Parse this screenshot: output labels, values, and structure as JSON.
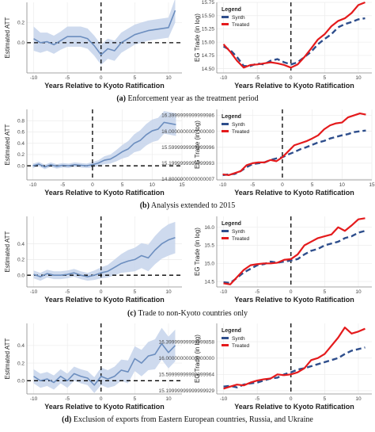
{
  "panels": [
    {
      "caption_tag": "(a)",
      "caption_text": " Enforcement year as the treatment period"
    },
    {
      "caption_tag": "(b)",
      "caption_text": " Analysis extended to 2015"
    },
    {
      "caption_tag": "(c)",
      "caption_text": " Trade to non-Kyoto countries only"
    },
    {
      "caption_tag": "(d)",
      "caption_text": " Exclusion of exports from Eastern European countries, Russia, and Ukraine"
    }
  ],
  "colors": {
    "band": "#c9d6ec",
    "att_line": "#6c8ebf",
    "synth": "#2e4e8c",
    "treated": "#e41a1c"
  },
  "chart_data": [
    {
      "type": "line",
      "panel": "a-left",
      "xlabel": "Years Relative to Kyoto Ratification",
      "ylabel": "Estimated ATT",
      "xlim": [
        -11,
        12
      ],
      "ylim": [
        -0.3,
        0.4
      ],
      "xticks": [
        -10,
        -5,
        0,
        5,
        10
      ],
      "yticks": [
        0.0,
        0.2
      ],
      "x": [
        -10,
        -9,
        -8,
        -7,
        -6,
        -5,
        -4,
        -3,
        -2,
        -1,
        0,
        1,
        2,
        3,
        4,
        5,
        6,
        7,
        8,
        9,
        10,
        11
      ],
      "series": [
        {
          "values": [
            0.04,
            0.0,
            0.01,
            -0.02,
            0.02,
            0.06,
            0.06,
            0.06,
            0.04,
            -0.03,
            -0.12,
            -0.06,
            -0.08,
            0.0,
            0.04,
            0.08,
            0.1,
            0.12,
            0.13,
            0.14,
            0.15,
            0.32
          ]
        }
      ],
      "band_width": [
        0.12,
        0.1,
        0.09,
        0.09,
        0.09,
        0.1,
        0.1,
        0.1,
        0.1,
        0.1,
        0.1,
        0.1,
        0.1,
        0.1,
        0.1,
        0.1,
        0.1,
        0.1,
        0.1,
        0.1,
        0.1,
        0.12
      ],
      "ref_lines": {
        "x": 0,
        "y": 0
      }
    },
    {
      "type": "line",
      "panel": "a-right",
      "xlabel": "Years Relative to Kyoto Ratification",
      "ylabel": "EG Trade (in log)",
      "xlim": [
        -11,
        12
      ],
      "ylim": [
        14.42,
        15.75
      ],
      "xticks": [
        -10,
        -5,
        0,
        5,
        10
      ],
      "yticks": [
        14.5,
        14.75,
        15.0,
        15.25,
        15.5,
        15.75
      ],
      "legend_title": "Legend",
      "legend_position": "top-left",
      "x": [
        -10,
        -9,
        -8,
        -7,
        -6,
        -5,
        -4,
        -3,
        -2,
        -1,
        0,
        1,
        2,
        3,
        4,
        5,
        6,
        7,
        8,
        9,
        10,
        11
      ],
      "series": [
        {
          "name": "Synth",
          "values": [
            14.92,
            14.85,
            14.72,
            14.55,
            14.55,
            14.6,
            14.58,
            14.65,
            14.68,
            14.62,
            14.58,
            14.62,
            14.72,
            14.82,
            14.96,
            15.06,
            15.15,
            15.28,
            15.34,
            15.38,
            15.43,
            15.45
          ]
        },
        {
          "name": "Treated",
          "values": [
            14.96,
            14.82,
            14.65,
            14.52,
            14.57,
            14.58,
            14.6,
            14.62,
            14.6,
            14.57,
            14.52,
            14.58,
            14.72,
            14.88,
            15.05,
            15.15,
            15.3,
            15.4,
            15.45,
            15.55,
            15.7,
            15.75
          ]
        }
      ],
      "ref_lines": {
        "x": 0
      }
    },
    {
      "type": "line",
      "panel": "b-left",
      "xlabel": "Years Relative to Kyoto Ratification",
      "ylabel": "Estimated ATT",
      "xlim": [
        -11,
        15
      ],
      "ylim": [
        -0.25,
        1.0
      ],
      "xticks": [
        -10,
        -5,
        0,
        5,
        10,
        15
      ],
      "yticks": [
        0.0,
        0.2,
        0.4,
        0.6,
        0.8
      ],
      "x": [
        -10,
        -9,
        -8,
        -7,
        -6,
        -5,
        -4,
        -3,
        -2,
        -1,
        0,
        1,
        2,
        3,
        4,
        5,
        6,
        7,
        8,
        9,
        10,
        11,
        12,
        13,
        14
      ],
      "series": [
        {
          "values": [
            0.0,
            0.03,
            -0.02,
            0.02,
            -0.01,
            0.01,
            0.0,
            0.02,
            0.01,
            0.0,
            0.02,
            0.05,
            0.1,
            0.12,
            0.18,
            0.25,
            0.3,
            0.4,
            0.45,
            0.55,
            0.62,
            0.65,
            0.77,
            0.75,
            0.73
          ]
        }
      ],
      "band_width": [
        0.04,
        0.04,
        0.04,
        0.04,
        0.04,
        0.04,
        0.04,
        0.04,
        0.04,
        0.04,
        0.05,
        0.05,
        0.07,
        0.08,
        0.1,
        0.12,
        0.14,
        0.16,
        0.18,
        0.19,
        0.2,
        0.2,
        0.2,
        0.2,
        0.2
      ],
      "ref_lines": {
        "x": 0,
        "y": 0
      }
    },
    {
      "type": "line",
      "panel": "b-right",
      "xlabel": "Years Relative to Kyoto Ratification",
      "ylabel": "EG Trade (in log)",
      "xlim": [
        -11,
        15
      ],
      "ylim": [
        14.78,
        16.55
      ],
      "xticks": [
        -10,
        -5,
        0,
        5,
        10,
        15
      ],
      "yticks": [
        14.8,
        15.2,
        15.6,
        16.0,
        16.4
      ],
      "legend_title": "Legend",
      "legend_position": "top-left",
      "x": [
        -10,
        -9,
        -8,
        -7,
        -6,
        -5,
        -4,
        -3,
        -2,
        -1,
        0,
        1,
        2,
        3,
        4,
        5,
        6,
        7,
        8,
        9,
        10,
        11,
        12,
        13,
        14
      ],
      "series": [
        {
          "name": "Synth",
          "values": [
            14.9,
            14.92,
            14.93,
            15.0,
            15.1,
            15.18,
            15.2,
            15.22,
            15.28,
            15.32,
            15.35,
            15.42,
            15.48,
            15.55,
            15.6,
            15.66,
            15.72,
            15.76,
            15.82,
            15.86,
            15.9,
            15.93,
            15.98,
            16.0,
            16.02
          ]
        },
        {
          "name": "Treated",
          "values": [
            14.92,
            14.9,
            14.95,
            15.0,
            15.15,
            15.2,
            15.22,
            15.22,
            15.28,
            15.25,
            15.35,
            15.5,
            15.65,
            15.7,
            15.75,
            15.82,
            15.9,
            16.05,
            16.15,
            16.2,
            16.22,
            16.35,
            16.4,
            16.45,
            16.42
          ]
        }
      ],
      "ref_lines": {
        "x": 0
      }
    },
    {
      "type": "line",
      "panel": "c-left",
      "xlabel": "Years Relative to Kyoto Ratification",
      "ylabel": "Estimated ATT",
      "xlim": [
        -11,
        12
      ],
      "ylim": [
        -0.15,
        0.75
      ],
      "xticks": [
        -10,
        -5,
        0,
        5,
        10
      ],
      "yticks": [
        0.0,
        0.2,
        0.4
      ],
      "x": [
        -10,
        -9,
        -8,
        -7,
        -6,
        -5,
        -4,
        -3,
        -2,
        -1,
        0,
        1,
        2,
        3,
        4,
        5,
        6,
        7,
        8,
        9,
        10,
        11
      ],
      "series": [
        {
          "values": [
            0.01,
            -0.02,
            0.02,
            0.0,
            0.0,
            0.01,
            0.03,
            0.0,
            -0.02,
            0.0,
            0.03,
            0.05,
            0.1,
            0.15,
            0.18,
            0.2,
            0.25,
            0.22,
            0.32,
            0.4,
            0.45,
            0.48
          ]
        }
      ],
      "band_width": [
        0.05,
        0.05,
        0.05,
        0.05,
        0.05,
        0.05,
        0.05,
        0.05,
        0.05,
        0.06,
        0.07,
        0.08,
        0.1,
        0.12,
        0.14,
        0.15,
        0.16,
        0.17,
        0.18,
        0.19,
        0.2,
        0.2
      ],
      "ref_lines": {
        "x": 0,
        "y": 0
      }
    },
    {
      "type": "line",
      "panel": "c-right",
      "xlabel": "Years Relative to Kyoto Ratification",
      "ylabel": "EG Trade (in log)",
      "xlim": [
        -11,
        12
      ],
      "ylim": [
        14.35,
        16.3
      ],
      "xticks": [
        -10,
        -5,
        0,
        5,
        10
      ],
      "yticks": [
        14.5,
        15.0,
        15.5,
        16.0
      ],
      "legend_title": "Legend",
      "legend_position": "top-left",
      "x": [
        -10,
        -9,
        -8,
        -7,
        -6,
        -5,
        -4,
        -3,
        -2,
        -1,
        0,
        1,
        2,
        3,
        4,
        5,
        6,
        7,
        8,
        9,
        10,
        11
      ],
      "series": [
        {
          "name": "Synth",
          "values": [
            14.48,
            14.46,
            14.6,
            14.75,
            14.85,
            14.95,
            14.98,
            15.05,
            15.02,
            15.05,
            15.08,
            15.12,
            15.25,
            15.35,
            15.4,
            15.5,
            15.55,
            15.6,
            15.7,
            15.75,
            15.85,
            15.9
          ]
        },
        {
          "name": "Treated",
          "values": [
            14.45,
            14.42,
            14.62,
            14.82,
            14.95,
            14.98,
            15.0,
            15.0,
            15.02,
            15.1,
            15.12,
            15.25,
            15.5,
            15.6,
            15.7,
            15.75,
            15.8,
            16.0,
            15.9,
            16.05,
            16.22,
            16.25
          ]
        }
      ],
      "ref_lines": {
        "x": 0
      }
    },
    {
      "type": "line",
      "panel": "d-left",
      "xlabel": "Years Relative to Kyoto Ratification",
      "ylabel": "Estimated ATT",
      "xlim": [
        -11,
        12
      ],
      "ylim": [
        -0.15,
        0.65
      ],
      "xticks": [
        -10,
        -5,
        0,
        5,
        10
      ],
      "yticks": [
        0.0,
        0.2,
        0.4
      ],
      "x": [
        -10,
        -9,
        -8,
        -7,
        -6,
        -5,
        -4,
        -3,
        -2,
        -1,
        0,
        1,
        2,
        3,
        4,
        5,
        6,
        7,
        8,
        9,
        10,
        11
      ],
      "series": [
        {
          "values": [
            0.05,
            0.0,
            0.02,
            -0.02,
            0.05,
            0.0,
            0.08,
            0.05,
            0.03,
            -0.05,
            0.05,
            0.02,
            0.05,
            0.12,
            0.1,
            0.25,
            0.2,
            0.28,
            0.3,
            0.42,
            0.32,
            0.4
          ]
        }
      ],
      "band_width": [
        0.08,
        0.08,
        0.08,
        0.08,
        0.08,
        0.08,
        0.08,
        0.08,
        0.08,
        0.09,
        0.1,
        0.1,
        0.11,
        0.12,
        0.13,
        0.14,
        0.15,
        0.16,
        0.17,
        0.18,
        0.18,
        0.18
      ],
      "ref_lines": {
        "x": 0,
        "y": 0
      }
    },
    {
      "type": "line",
      "panel": "d-right",
      "xlabel": "Years Relative to Kyoto Ratification",
      "ylabel": "EG Trade (in log)",
      "xlim": [
        -11,
        12
      ],
      "ylim": [
        15.12,
        16.85
      ],
      "xticks": [
        -10,
        -5,
        0,
        5,
        10
      ],
      "yticks": [
        15.2,
        15.6,
        16.0,
        16.4
      ],
      "legend_title": "Legend",
      "legend_position": "top-left",
      "x": [
        -10,
        -9,
        -8,
        -7,
        -6,
        -5,
        -4,
        -3,
        -2,
        -1,
        0,
        1,
        2,
        3,
        4,
        5,
        6,
        7,
        8,
        9,
        10,
        11
      ],
      "series": [
        {
          "name": "Synth",
          "values": [
            15.3,
            15.32,
            15.28,
            15.35,
            15.38,
            15.4,
            15.45,
            15.5,
            15.52,
            15.6,
            15.65,
            15.72,
            15.75,
            15.8,
            15.85,
            15.9,
            15.95,
            16.0,
            16.1,
            16.18,
            16.22,
            16.26
          ]
        },
        {
          "name": "Treated",
          "values": [
            15.25,
            15.3,
            15.35,
            15.33,
            15.4,
            15.45,
            15.48,
            15.5,
            15.6,
            15.58,
            15.6,
            15.65,
            15.75,
            15.95,
            16.0,
            16.1,
            16.3,
            16.5,
            16.75,
            16.6,
            16.65,
            16.72
          ]
        }
      ],
      "ref_lines": {
        "x": 0
      }
    }
  ]
}
